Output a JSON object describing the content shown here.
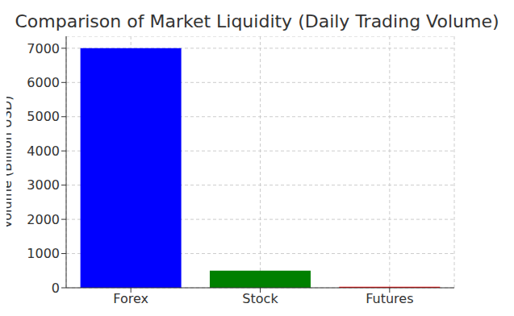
{
  "chart_data": {
    "type": "bar",
    "title": "Comparison of Market Liquidity (Daily Trading Volume)",
    "y_label": "Volume (Billion USD)",
    "categories": [
      "Forex",
      "Stock",
      "Futures"
    ],
    "values": [
      7000,
      500,
      30
    ],
    "colors": [
      "#0000ff",
      "#008000",
      "#ff0000"
    ],
    "ylim": [
      0,
      7350
    ],
    "yticks": [
      0,
      1000,
      2000,
      3000,
      4000,
      5000,
      6000,
      7000
    ],
    "grid": true
  }
}
